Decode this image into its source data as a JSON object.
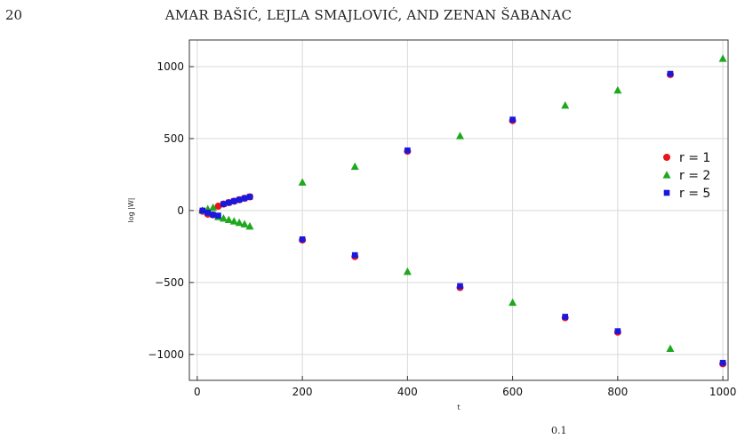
{
  "header": {
    "page_number": "20",
    "running_title": "AMAR BAŠIĆ, LEJLA SMAJLOVIĆ, AND ZENAN ŠABANAC"
  },
  "caption_fragment": "0.1",
  "chart_data": {
    "type": "scatter",
    "title": "",
    "xlabel": "t",
    "ylabel": "log |W|",
    "xlim": [
      -15,
      1010
    ],
    "ylim": [
      -1180,
      1185
    ],
    "xticks": [
      0,
      200,
      400,
      600,
      800,
      1000
    ],
    "yticks": [
      -1000,
      -500,
      0,
      500,
      1000
    ],
    "xtick_labels": [
      "0",
      "200",
      "400",
      "600",
      "800",
      "1000"
    ],
    "ytick_labels": [
      "−1000",
      "−500",
      "0",
      "500",
      "1000"
    ],
    "grid": true,
    "legend_position": "right",
    "series": [
      {
        "name": "r = 1",
        "marker": "circle",
        "color": "#e8141b",
        "x": [
          10,
          20,
          30,
          40,
          50,
          60,
          70,
          80,
          90,
          100,
          200,
          300,
          400,
          500,
          600,
          700,
          800,
          900,
          1000
        ],
        "y": [
          -5,
          -25,
          -30,
          30,
          45,
          55,
          65,
          75,
          85,
          95,
          -205,
          -320,
          412,
          -535,
          625,
          -745,
          -845,
          945,
          -1065
        ]
      },
      {
        "name": "r = 2",
        "marker": "triangle",
        "color": "#1ea81e",
        "x": [
          10,
          20,
          30,
          40,
          50,
          60,
          70,
          80,
          90,
          100,
          200,
          300,
          400,
          500,
          600,
          700,
          800,
          900,
          1000
        ],
        "y": [
          0,
          10,
          20,
          -45,
          -55,
          -65,
          -75,
          -85,
          -95,
          -110,
          195,
          305,
          -425,
          518,
          -640,
          730,
          835,
          -960,
          1055
        ]
      },
      {
        "name": "r = 5",
        "marker": "square",
        "color": "#1818e0",
        "x": [
          10,
          20,
          30,
          40,
          50,
          60,
          70,
          80,
          90,
          100,
          200,
          300,
          400,
          500,
          600,
          700,
          800,
          900,
          1000
        ],
        "y": [
          0,
          -15,
          -30,
          -35,
          45,
          55,
          65,
          75,
          85,
          95,
          -200,
          -310,
          418,
          -525,
          632,
          -738,
          -838,
          950,
          -1058
        ]
      }
    ]
  }
}
